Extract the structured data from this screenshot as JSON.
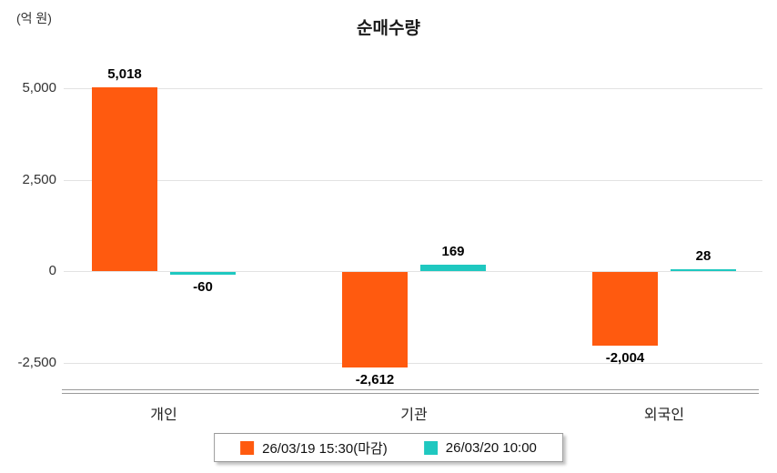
{
  "chart_data": {
    "type": "bar",
    "title": "순매수량",
    "unit_label": "(억 원)",
    "categories": [
      "개인",
      "기관",
      "외국인"
    ],
    "series": [
      {
        "name": "26/03/19 15:30(마감)",
        "color": "#ff5a0f",
        "values": [
          5018,
          -2612,
          -2004
        ]
      },
      {
        "name": "26/03/20 10:00",
        "color": "#1fc8c0",
        "values": [
          -60,
          169,
          28
        ]
      }
    ],
    "value_labels": [
      [
        "5,018",
        "-2,612",
        "-2,004"
      ],
      [
        "-60",
        "169",
        "28"
      ]
    ],
    "yticks": [
      5000,
      2500,
      0,
      -2500
    ],
    "ytick_labels": [
      "5,000",
      "2,500",
      "0",
      "-2,500"
    ],
    "ylim": [
      -3300,
      5900
    ],
    "grid": true,
    "legend_position": "bottom"
  }
}
